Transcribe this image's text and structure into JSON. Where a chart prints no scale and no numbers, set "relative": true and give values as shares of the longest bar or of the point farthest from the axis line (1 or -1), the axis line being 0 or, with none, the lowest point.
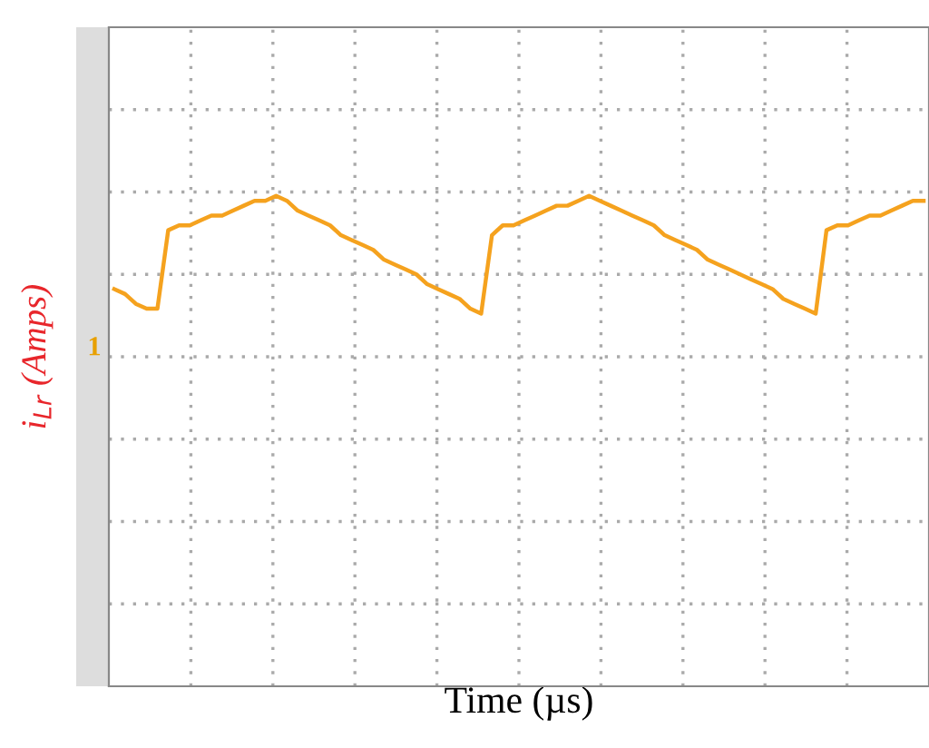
{
  "chart_data": {
    "type": "line",
    "relative": true,
    "xlabel": "Time (µs)",
    "ylabel": "i$_{Lr}$ (Amps)",
    "grid": true,
    "tick_labels": false,
    "annotations": [
      "1"
    ],
    "categories": [
      null,
      null,
      null,
      null,
      null,
      null,
      null,
      null,
      null,
      null,
      null,
      null,
      null,
      null,
      null,
      null,
      null,
      null,
      null,
      null,
      null,
      null,
      null,
      null,
      null,
      null,
      null,
      null,
      null,
      null,
      null,
      null,
      null,
      null,
      null,
      null,
      null,
      null,
      null,
      null,
      null,
      null,
      null,
      null,
      null,
      null,
      null,
      null,
      null,
      null,
      null,
      null,
      null,
      null,
      null,
      null,
      null,
      null,
      null,
      null,
      null,
      null,
      null,
      null,
      null,
      null,
      null,
      null,
      null,
      null,
      null,
      null,
      null,
      null,
      null,
      null
    ],
    "series": [
      {
        "color": "#f5a21e",
        "values": [
          0.81,
          0.8,
          0.78,
          0.77,
          0.77,
          0.93,
          0.94,
          0.94,
          0.95,
          0.96,
          0.96,
          0.97,
          0.98,
          0.99,
          0.99,
          1,
          0.99,
          0.97,
          0.96,
          0.95,
          0.94,
          0.92,
          0.91,
          0.9,
          0.89,
          0.87,
          0.86,
          0.85,
          0.84,
          0.82,
          0.81,
          0.8,
          0.79,
          0.77,
          0.76,
          0.92,
          0.94,
          0.94,
          0.95,
          0.96,
          0.97,
          0.98,
          0.98,
          0.99,
          1,
          0.99,
          0.98,
          0.97,
          0.96,
          0.95,
          0.94,
          0.92,
          0.91,
          0.9,
          0.89,
          0.87,
          0.86,
          0.85,
          0.84,
          0.83,
          0.82,
          0.81,
          0.79,
          0.78,
          0.77,
          0.76,
          0.93,
          0.94,
          0.94,
          0.95,
          0.96,
          0.96,
          0.97,
          0.98,
          0.99,
          0.99
        ]
      }
    ]
  }
}
